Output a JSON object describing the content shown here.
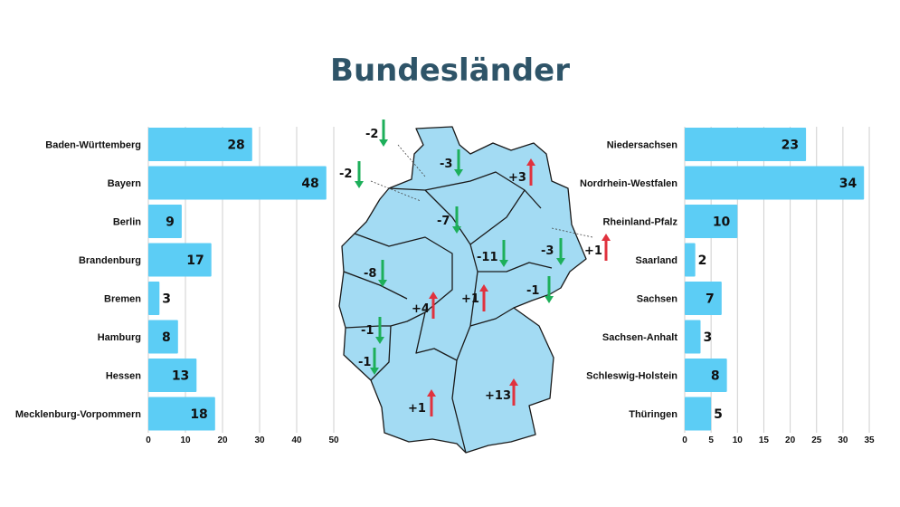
{
  "title": "Bundesländer",
  "colors": {
    "bar": "#5ccdf5",
    "map": "#a3dbf3",
    "up": "#e0323e",
    "down": "#1daf5a",
    "title": "#2e5468"
  },
  "chart_data": [
    {
      "type": "bar",
      "orientation": "horizontal",
      "categories": [
        "Baden-Württemberg",
        "Bayern",
        "Berlin",
        "Brandenburg",
        "Bremen",
        "Hamburg",
        "Hessen",
        "Mecklenburg-Vorpommern"
      ],
      "values": [
        28,
        48,
        9,
        17,
        3,
        8,
        13,
        18
      ],
      "xlim": [
        0,
        50
      ],
      "xticks": [
        0,
        10,
        20,
        30,
        40,
        50
      ],
      "grid": true
    },
    {
      "type": "bar",
      "orientation": "horizontal",
      "categories": [
        "Niedersachsen",
        "Nordrhein-Westfalen",
        "Rheinland-Pfalz",
        "Saarland",
        "Sachsen",
        "Sachsen-Anhalt",
        "Schleswig-Holstein",
        "Thüringen"
      ],
      "values": [
        23,
        34,
        10,
        2,
        7,
        3,
        8,
        5
      ],
      "xlim": [
        0,
        35
      ],
      "xticks": [
        0,
        5,
        10,
        15,
        20,
        25,
        30,
        35
      ],
      "grid": true
    }
  ],
  "map_changes": [
    {
      "label": "-2",
      "dir": "down"
    },
    {
      "label": "-2",
      "dir": "down"
    },
    {
      "label": "-3",
      "dir": "down"
    },
    {
      "label": "+3",
      "dir": "up"
    },
    {
      "label": "-7",
      "dir": "down"
    },
    {
      "label": "+1",
      "dir": "up"
    },
    {
      "label": "-3",
      "dir": "down"
    },
    {
      "label": "-11",
      "dir": "down"
    },
    {
      "label": "-8",
      "dir": "down"
    },
    {
      "label": "-1",
      "dir": "down"
    },
    {
      "label": "+4",
      "dir": "up"
    },
    {
      "label": "+1",
      "dir": "up"
    },
    {
      "label": "-1",
      "dir": "down"
    },
    {
      "label": "-1",
      "dir": "down"
    },
    {
      "label": "+1",
      "dir": "up"
    },
    {
      "label": "+13",
      "dir": "up"
    }
  ]
}
